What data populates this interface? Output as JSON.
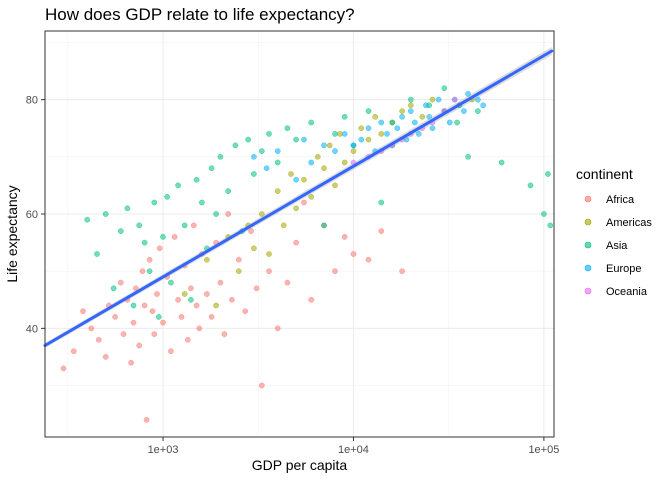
{
  "chart_data": {
    "type": "scatter",
    "title": "How does GDP relate to life expectancy?",
    "xlabel": "GDP per capita",
    "ylabel": "Life expectancy",
    "x_scale": "log10",
    "xlim": [
      240,
      113000
    ],
    "ylim": [
      21,
      92
    ],
    "x_ticks": [
      1000,
      10000,
      100000
    ],
    "x_tick_labels": [
      "1e+03",
      "1e+04",
      "1e+05"
    ],
    "y_ticks": [
      40,
      60,
      80
    ],
    "y_tick_labels": [
      "40",
      "60",
      "80"
    ],
    "grid": true,
    "legend": {
      "title": "continent",
      "position": "right"
    },
    "series": [
      {
        "name": "Africa",
        "color": "#F8766D",
        "points": [
          [
            300,
            33
          ],
          [
            340,
            36
          ],
          [
            380,
            43
          ],
          [
            420,
            40
          ],
          [
            460,
            38
          ],
          [
            500,
            35
          ],
          [
            520,
            44
          ],
          [
            560,
            42
          ],
          [
            600,
            48
          ],
          [
            620,
            39
          ],
          [
            650,
            45
          ],
          [
            680,
            34
          ],
          [
            700,
            41
          ],
          [
            720,
            47
          ],
          [
            750,
            37
          ],
          [
            780,
            50
          ],
          [
            800,
            44
          ],
          [
            820,
            24
          ],
          [
            850,
            52
          ],
          [
            880,
            43
          ],
          [
            900,
            39
          ],
          [
            930,
            46
          ],
          [
            960,
            54
          ],
          [
            1000,
            41
          ],
          [
            1050,
            49
          ],
          [
            1100,
            36
          ],
          [
            1150,
            56
          ],
          [
            1200,
            45
          ],
          [
            1250,
            42
          ],
          [
            1300,
            51
          ],
          [
            1350,
            38
          ],
          [
            1400,
            47
          ],
          [
            1450,
            58
          ],
          [
            1500,
            44
          ],
          [
            1550,
            40
          ],
          [
            1600,
            53
          ],
          [
            1700,
            46
          ],
          [
            1800,
            42
          ],
          [
            1900,
            55
          ],
          [
            2000,
            48
          ],
          [
            2100,
            39
          ],
          [
            2200,
            60
          ],
          [
            2300,
            45
          ],
          [
            2500,
            52
          ],
          [
            2700,
            43
          ],
          [
            2900,
            57
          ],
          [
            3100,
            47
          ],
          [
            3300,
            30
          ],
          [
            3600,
            50
          ],
          [
            4000,
            40
          ],
          [
            4500,
            48
          ],
          [
            5000,
            55
          ],
          [
            5500,
            62
          ],
          [
            6000,
            45
          ],
          [
            7000,
            58
          ],
          [
            8000,
            50
          ],
          [
            9000,
            56
          ],
          [
            10000,
            53
          ],
          [
            12000,
            52
          ],
          [
            14000,
            57
          ],
          [
            18000,
            50
          ]
        ]
      },
      {
        "name": "Americas",
        "color": "#A3A500",
        "points": [
          [
            1300,
            46
          ],
          [
            1700,
            52
          ],
          [
            1900,
            44
          ],
          [
            2200,
            56
          ],
          [
            2500,
            50
          ],
          [
            2800,
            58
          ],
          [
            3000,
            54
          ],
          [
            3300,
            60
          ],
          [
            3600,
            53
          ],
          [
            4000,
            64
          ],
          [
            4300,
            58
          ],
          [
            4700,
            67
          ],
          [
            5000,
            61
          ],
          [
            5500,
            66
          ],
          [
            6000,
            63
          ],
          [
            6500,
            70
          ],
          [
            7000,
            68
          ],
          [
            7500,
            72
          ],
          [
            8000,
            65
          ],
          [
            8500,
            74
          ],
          [
            9000,
            69
          ],
          [
            10000,
            71
          ],
          [
            11000,
            75
          ],
          [
            12000,
            73
          ],
          [
            13000,
            77
          ],
          [
            14000,
            74
          ],
          [
            16000,
            76
          ],
          [
            18000,
            78
          ],
          [
            20000,
            79
          ],
          [
            23000,
            77
          ],
          [
            26000,
            80
          ],
          [
            30000,
            78
          ],
          [
            36000,
            79
          ],
          [
            42000,
            80
          ]
        ]
      },
      {
        "name": "Asia",
        "color": "#00BF7D",
        "points": [
          [
            400,
            59
          ],
          [
            450,
            53
          ],
          [
            500,
            60
          ],
          [
            550,
            47
          ],
          [
            600,
            57
          ],
          [
            650,
            61
          ],
          [
            700,
            44
          ],
          [
            750,
            58
          ],
          [
            800,
            55
          ],
          [
            850,
            50
          ],
          [
            900,
            62
          ],
          [
            950,
            42
          ],
          [
            1000,
            56
          ],
          [
            1050,
            63
          ],
          [
            1100,
            48
          ],
          [
            1200,
            65
          ],
          [
            1300,
            58
          ],
          [
            1400,
            45
          ],
          [
            1500,
            66
          ],
          [
            1600,
            62
          ],
          [
            1700,
            54
          ],
          [
            1800,
            68
          ],
          [
            1900,
            60
          ],
          [
            2000,
            70
          ],
          [
            2200,
            64
          ],
          [
            2400,
            72
          ],
          [
            2600,
            57
          ],
          [
            2800,
            73
          ],
          [
            3000,
            67
          ],
          [
            3300,
            71
          ],
          [
            3600,
            74
          ],
          [
            4000,
            69
          ],
          [
            4500,
            75
          ],
          [
            5000,
            73
          ],
          [
            6000,
            76
          ],
          [
            7000,
            58
          ],
          [
            8000,
            74
          ],
          [
            9000,
            77
          ],
          [
            10000,
            72
          ],
          [
            12000,
            78
          ],
          [
            14000,
            62
          ],
          [
            16000,
            76
          ],
          [
            20000,
            80
          ],
          [
            25000,
            79
          ],
          [
            30000,
            82
          ],
          [
            35000,
            76
          ],
          [
            40000,
            70
          ],
          [
            45000,
            78
          ],
          [
            60000,
            69
          ],
          [
            85000,
            65
          ],
          [
            100000,
            60
          ],
          [
            105000,
            67
          ],
          [
            108000,
            58
          ]
        ]
      },
      {
        "name": "Europe",
        "color": "#00B0F6",
        "points": [
          [
            3000,
            70
          ],
          [
            3500,
            68
          ],
          [
            4000,
            71
          ],
          [
            5000,
            66
          ],
          [
            5500,
            73
          ],
          [
            6000,
            69
          ],
          [
            7000,
            72
          ],
          [
            8000,
            71
          ],
          [
            9000,
            74
          ],
          [
            10000,
            72
          ],
          [
            11000,
            73
          ],
          [
            12000,
            75
          ],
          [
            13000,
            71
          ],
          [
            14000,
            76
          ],
          [
            15000,
            74
          ],
          [
            16000,
            72
          ],
          [
            17000,
            75
          ],
          [
            18000,
            77
          ],
          [
            19000,
            73
          ],
          [
            20000,
            78
          ],
          [
            21000,
            76
          ],
          [
            22000,
            74
          ],
          [
            24000,
            79
          ],
          [
            25000,
            77
          ],
          [
            26000,
            75
          ],
          [
            28000,
            80
          ],
          [
            30000,
            78
          ],
          [
            32000,
            76
          ],
          [
            34000,
            80
          ],
          [
            36000,
            79
          ],
          [
            38000,
            78
          ],
          [
            40000,
            81
          ],
          [
            45000,
            80
          ],
          [
            48000,
            79
          ]
        ]
      },
      {
        "name": "Oceania",
        "color": "#E76BF3",
        "points": [
          [
            10000,
            69
          ],
          [
            12000,
            70
          ],
          [
            14000,
            71
          ],
          [
            16000,
            72
          ],
          [
            18000,
            73
          ],
          [
            20000,
            74
          ],
          [
            23000,
            75
          ],
          [
            26000,
            76
          ],
          [
            30000,
            78
          ],
          [
            34000,
            80
          ]
        ]
      }
    ],
    "trend_line": {
      "method": "linear fit on log10(GDP per capita)",
      "color": "#3366FF",
      "points": [
        [
          240,
          37
        ],
        [
          110000,
          88.5
        ]
      ]
    }
  }
}
